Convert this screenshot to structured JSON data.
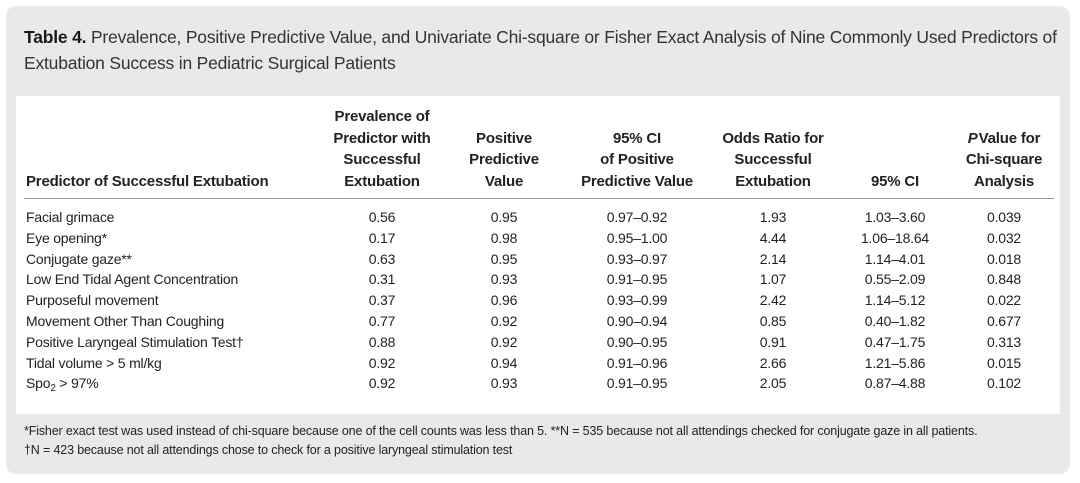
{
  "caption": {
    "label": "Table 4.",
    "text": "Prevalence, Positive Predictive Value, and Univariate Chi-square or Fisher Exact Analysis of Nine Commonly Used Predictors of Extubation Success in Pediatric Surgical Patients"
  },
  "table": {
    "headers": {
      "predictor": "Predictor of Successful Extubation",
      "prevalence": [
        "Prevalence of",
        "Predictor with",
        "Successful",
        "Extubation"
      ],
      "ppv": [
        "Positive",
        "Predictive",
        "Value"
      ],
      "ci_ppv": [
        "95% CI",
        "of Positive",
        "Predictive Value"
      ],
      "odds": [
        "Odds Ratio for",
        "Successful",
        "Extubation"
      ],
      "ci": "95% CI",
      "pvalue_italic": "P",
      "pvalue": [
        "Value for",
        "Chi-square",
        "Analysis"
      ]
    },
    "rows": [
      {
        "predictor": "Facial grimace",
        "prevalence": "0.56",
        "ppv": "0.95",
        "ci_ppv": "0.97–0.92",
        "odds": "1.93",
        "ci": "1.03–3.60",
        "p": "0.039"
      },
      {
        "predictor": "Eye opening*",
        "prevalence": "0.17",
        "ppv": "0.98",
        "ci_ppv": "0.95–1.00",
        "odds": "4.44",
        "ci": "1.06–18.64",
        "p": "0.032"
      },
      {
        "predictor": "Conjugate gaze**",
        "prevalence": "0.63",
        "ppv": "0.95",
        "ci_ppv": "0.93–0.97",
        "odds": "2.14",
        "ci": "1.14–4.01",
        "p": "0.018"
      },
      {
        "predictor": "Low End Tidal Agent Concentration",
        "prevalence": "0.31",
        "ppv": "0.93",
        "ci_ppv": "0.91–0.95",
        "odds": "1.07",
        "ci": "0.55–2.09",
        "p": "0.848"
      },
      {
        "predictor": "Purposeful movement",
        "prevalence": "0.37",
        "ppv": "0.96",
        "ci_ppv": "0.93–0.99",
        "odds": "2.42",
        "ci": "1.14–5.12",
        "p": "0.022"
      },
      {
        "predictor": "Movement Other Than Coughing",
        "prevalence": "0.77",
        "ppv": "0.92",
        "ci_ppv": "0.90–0.94",
        "odds": "0.85",
        "ci": "0.40–1.82",
        "p": "0.677"
      },
      {
        "predictor": "Positive Laryngeal Stimulation Test†",
        "prevalence": "0.88",
        "ppv": "0.92",
        "ci_ppv": "0.90–0.95",
        "odds": "0.91",
        "ci": "0.47–1.75",
        "p": "0.313"
      },
      {
        "predictor": "Tidal volume > 5 ml/kg",
        "prevalence": "0.92",
        "ppv": "0.94",
        "ci_ppv": "0.91–0.96",
        "odds": "2.66",
        "ci": "1.21–5.86",
        "p": "0.015"
      },
      {
        "predictor_main": "Spo",
        "predictor_sub": "2",
        "predictor_rest": " > 97%",
        "prevalence": "0.92",
        "ppv": "0.93",
        "ci_ppv": "0.91–0.95",
        "odds": "2.05",
        "ci": "0.87–4.88",
        "p": "0.102"
      }
    ]
  },
  "footnotes": [
    "*Fisher exact test was used instead of chi-square because one of the cell counts was less than 5. **N = 535 because not all attendings checked for conjugate gaze in all patients.",
    "†N = 423 because not all attendings chose to check for a positive laryngeal stimulation test"
  ]
}
